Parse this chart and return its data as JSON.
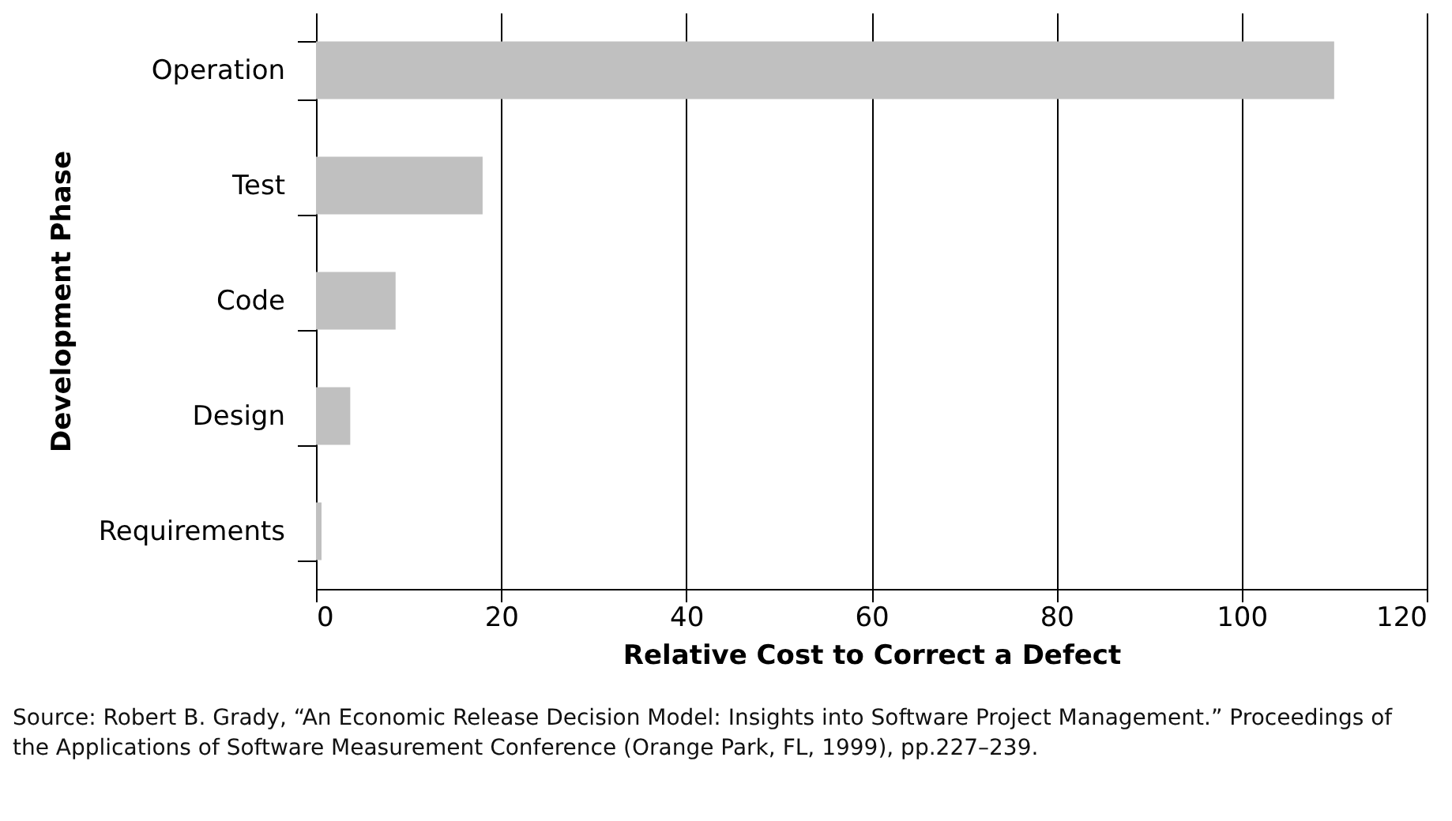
{
  "chart_data": {
    "type": "bar",
    "orientation": "horizontal",
    "categories": [
      "Operation",
      "Test",
      "Code",
      "Design",
      "Requirements"
    ],
    "values": [
      110,
      18,
      8.6,
      3.7,
      0.6
    ],
    "color": "#c0c0c0",
    "xlabel": "Relative Cost to Correct a Defect",
    "ylabel": "Development Phase",
    "xlim": [
      0,
      120
    ],
    "xticks": [
      0,
      20,
      40,
      60,
      80,
      100,
      120
    ],
    "grid": "x",
    "annotations": [
      "Source: Robert B. Grady, “An Economic Release Decision Model: Insights into Software Project Management.” Proceedings of the Applications of Software Measurement Conference (Orange Park, FL, 1999), pp.227–239."
    ]
  }
}
